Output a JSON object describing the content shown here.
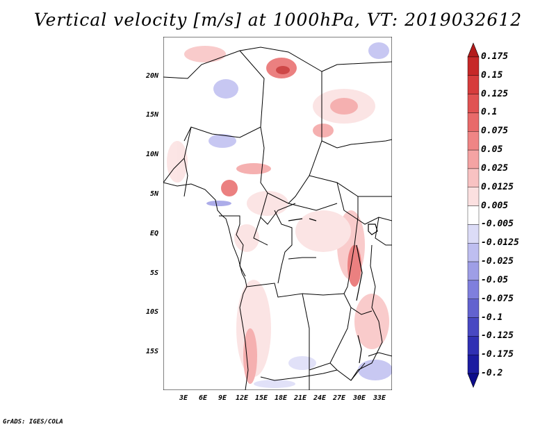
{
  "title": "Vertical velocity [m/s] at 1000hPa, VT: 2019032612",
  "footer": "GrADS: IGES/COLA",
  "map": {
    "lat_labels": [
      "20N",
      "15N",
      "10N",
      "5N",
      "EQ",
      "5S",
      "10S",
      "15S"
    ],
    "lon_labels": [
      "3E",
      "6E",
      "9E",
      "12E",
      "15E",
      "18E",
      "21E",
      "24E",
      "27E",
      "30E",
      "33E"
    ]
  },
  "colorbar": {
    "labels": [
      "0.175",
      "0.15",
      "0.125",
      "0.1",
      "0.075",
      "0.05",
      "0.025",
      "0.0125",
      "0.005",
      "-0.005",
      "-0.0125",
      "-0.025",
      "-0.05",
      "-0.075",
      "-0.1",
      "-0.125",
      "-0.175",
      "-0.2"
    ],
    "colors": [
      "#b31b1b",
      "#c62828",
      "#d63c3c",
      "#e05252",
      "#e86a6a",
      "#ef8585",
      "#f4a3a3",
      "#f8c2c2",
      "#fbe0e0",
      "#ffffff",
      "#dcdcf7",
      "#bebef0",
      "#9e9ee6",
      "#7f7fdd",
      "#6262cf",
      "#4848c2",
      "#3030b3",
      "#1c1ca0",
      "#0c0c8a"
    ]
  }
}
